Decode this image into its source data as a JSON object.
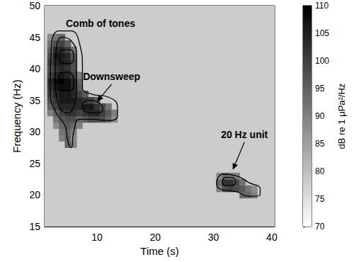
{
  "chart_data": {
    "type": "heatmap",
    "x_label": "Time (s)",
    "y_label": "Frequency (Hz)",
    "xlim": [
      1,
      40.5
    ],
    "xticks": [
      10,
      20,
      30,
      40
    ],
    "ylim": [
      15,
      50
    ],
    "yticks": [
      15,
      20,
      25,
      30,
      35,
      40,
      45,
      50
    ],
    "grid": false,
    "background_level": 78,
    "cells": [
      [
        2,
        33,
        90
      ],
      [
        2,
        34,
        95
      ],
      [
        2,
        35,
        98
      ],
      [
        2,
        36,
        100
      ],
      [
        2,
        37,
        102
      ],
      [
        2,
        38,
        104
      ],
      [
        2,
        39,
        100
      ],
      [
        2,
        40,
        98
      ],
      [
        2,
        41,
        100
      ],
      [
        2,
        42,
        98
      ],
      [
        2,
        43,
        95
      ],
      [
        2,
        44,
        92
      ],
      [
        2,
        45,
        88
      ],
      [
        3,
        31,
        88
      ],
      [
        3,
        32,
        92
      ],
      [
        3,
        33,
        95
      ],
      [
        3,
        34,
        100
      ],
      [
        3,
        35,
        102
      ],
      [
        3,
        36,
        104
      ],
      [
        3,
        37,
        106
      ],
      [
        3,
        38,
        108
      ],
      [
        3,
        39,
        104
      ],
      [
        3,
        40,
        102
      ],
      [
        3,
        41,
        104
      ],
      [
        3,
        42,
        106
      ],
      [
        3,
        43,
        104
      ],
      [
        3,
        44,
        98
      ],
      [
        3,
        45,
        92
      ],
      [
        4,
        29,
        90
      ],
      [
        4,
        30,
        92
      ],
      [
        4,
        31,
        94
      ],
      [
        4,
        32,
        96
      ],
      [
        4,
        33,
        100
      ],
      [
        4,
        34,
        104
      ],
      [
        4,
        35,
        106
      ],
      [
        4,
        36,
        106
      ],
      [
        4,
        37,
        108
      ],
      [
        4,
        38,
        110
      ],
      [
        4,
        39,
        106
      ],
      [
        4,
        40,
        104
      ],
      [
        4,
        41,
        106
      ],
      [
        4,
        42,
        106
      ],
      [
        4,
        43,
        104
      ],
      [
        4,
        44,
        100
      ],
      [
        4,
        45,
        94
      ],
      [
        5,
        28,
        95
      ],
      [
        5,
        29,
        95
      ],
      [
        5,
        30,
        94
      ],
      [
        5,
        31,
        96
      ],
      [
        5,
        32,
        98
      ],
      [
        5,
        33,
        102
      ],
      [
        5,
        34,
        104
      ],
      [
        5,
        35,
        106
      ],
      [
        5,
        36,
        106
      ],
      [
        5,
        37,
        108
      ],
      [
        5,
        38,
        108
      ],
      [
        5,
        39,
        104
      ],
      [
        5,
        40,
        102
      ],
      [
        5,
        41,
        104
      ],
      [
        5,
        42,
        104
      ],
      [
        5,
        43,
        100
      ],
      [
        5,
        44,
        95
      ],
      [
        6,
        28,
        90
      ],
      [
        6,
        29,
        88
      ],
      [
        6,
        30,
        90
      ],
      [
        6,
        31,
        94
      ],
      [
        6,
        32,
        98
      ],
      [
        6,
        33,
        102
      ],
      [
        6,
        34,
        104
      ],
      [
        6,
        35,
        106
      ],
      [
        6,
        36,
        104
      ],
      [
        6,
        37,
        104
      ],
      [
        6,
        38,
        104
      ],
      [
        6,
        39,
        100
      ],
      [
        6,
        40,
        98
      ],
      [
        6,
        41,
        98
      ],
      [
        6,
        42,
        96
      ],
      [
        6,
        43,
        92
      ],
      [
        7,
        31,
        90
      ],
      [
        7,
        32,
        94
      ],
      [
        7,
        33,
        100
      ],
      [
        7,
        34,
        104
      ],
      [
        7,
        35,
        104
      ],
      [
        7,
        36,
        100
      ],
      [
        7,
        37,
        96
      ],
      [
        7,
        38,
        94
      ],
      [
        7,
        39,
        90
      ],
      [
        8,
        32,
        96
      ],
      [
        8,
        33,
        102
      ],
      [
        8,
        34,
        106
      ],
      [
        8,
        35,
        102
      ],
      [
        8,
        36,
        96
      ],
      [
        9,
        32,
        98
      ],
      [
        9,
        33,
        104
      ],
      [
        9,
        34,
        106
      ],
      [
        9,
        35,
        100
      ],
      [
        10,
        32,
        98
      ],
      [
        10,
        33,
        104
      ],
      [
        10,
        34,
        102
      ],
      [
        10,
        35,
        96
      ],
      [
        11,
        32,
        98
      ],
      [
        11,
        33,
        100
      ],
      [
        11,
        34,
        98
      ],
      [
        12,
        32,
        94
      ],
      [
        12,
        33,
        96
      ],
      [
        12,
        34,
        92
      ],
      [
        13,
        32,
        88
      ],
      [
        13,
        33,
        90
      ],
      [
        31,
        21,
        90
      ],
      [
        31,
        22,
        94
      ],
      [
        31,
        23,
        88
      ],
      [
        32,
        21,
        98
      ],
      [
        32,
        22,
        102
      ],
      [
        32,
        23,
        94
      ],
      [
        33,
        21,
        100
      ],
      [
        33,
        22,
        102
      ],
      [
        33,
        23,
        92
      ],
      [
        34,
        21,
        98
      ],
      [
        34,
        22,
        98
      ],
      [
        34,
        23,
        90
      ],
      [
        35,
        20,
        94
      ],
      [
        35,
        21,
        96
      ],
      [
        35,
        22,
        92
      ],
      [
        36,
        20,
        94
      ],
      [
        36,
        21,
        92
      ],
      [
        37,
        20,
        90
      ],
      [
        37,
        21,
        88
      ]
    ],
    "contours": [
      [
        [
          2,
          39
        ],
        [
          2.2,
          44
        ],
        [
          3.5,
          46
        ],
        [
          5.5,
          46
        ],
        [
          7,
          44
        ],
        [
          7.5,
          40
        ],
        [
          7.5,
          37
        ],
        [
          9,
          36
        ],
        [
          12,
          35.5
        ],
        [
          13.5,
          34
        ],
        [
          13.5,
          32.5
        ],
        [
          12,
          31.8
        ],
        [
          9,
          32
        ],
        [
          7,
          32
        ],
        [
          6,
          30
        ],
        [
          5.6,
          27.5
        ],
        [
          5,
          28.5
        ],
        [
          4.5,
          31
        ],
        [
          3,
          33
        ],
        [
          2,
          36
        ],
        [
          2,
          39
        ]
      ],
      [
        [
          2.8,
          38
        ],
        [
          3,
          43
        ],
        [
          4,
          45
        ],
        [
          5.5,
          44.5
        ],
        [
          6.5,
          42
        ],
        [
          6.5,
          37
        ],
        [
          6,
          34
        ],
        [
          5,
          33
        ],
        [
          3.5,
          34
        ],
        [
          2.8,
          38
        ]
      ],
      [
        [
          3.3,
          37
        ],
        [
          3.5,
          39
        ],
        [
          5,
          39.5
        ],
        [
          6,
          38
        ],
        [
          5.5,
          36.5
        ],
        [
          4,
          36.5
        ],
        [
          3.3,
          37
        ]
      ],
      [
        [
          3.5,
          41
        ],
        [
          4,
          43
        ],
        [
          5.5,
          43
        ],
        [
          6,
          41.5
        ],
        [
          5,
          40.8
        ],
        [
          3.5,
          41
        ]
      ],
      [
        [
          7.5,
          34.5
        ],
        [
          8.5,
          35
        ],
        [
          10.5,
          34.5
        ],
        [
          11,
          33.5
        ],
        [
          10,
          33
        ],
        [
          8,
          33.2
        ],
        [
          7.5,
          34.5
        ]
      ],
      [
        [
          30.5,
          22
        ],
        [
          31.5,
          23.3
        ],
        [
          34,
          23
        ],
        [
          36,
          22
        ],
        [
          38,
          21
        ],
        [
          38,
          20
        ],
        [
          36,
          19.8
        ],
        [
          34,
          20.5
        ],
        [
          31,
          21
        ],
        [
          30.5,
          22
        ]
      ],
      [
        [
          31.5,
          22
        ],
        [
          32,
          22.8
        ],
        [
          33.5,
          22.7
        ],
        [
          33.8,
          22
        ],
        [
          33,
          21.5
        ],
        [
          32,
          21.5
        ],
        [
          31.5,
          22
        ]
      ]
    ],
    "annotations": [
      {
        "text": "Comb of tones",
        "x": 10.6,
        "y": 47.2
      },
      {
        "text": "Downsweep",
        "x": 12.5,
        "y": 38.8,
        "arrow_to": [
          10,
          34.8
        ]
      },
      {
        "text": "20 Hz unit",
        "x": 35.3,
        "y": 29.6,
        "arrow_to": [
          33.3,
          24
        ]
      }
    ],
    "colorbar": {
      "label": "dB re 1 μPa²/Hz",
      "lim": [
        70,
        110
      ],
      "ticks": [
        70,
        75,
        80,
        85,
        90,
        95,
        100,
        105,
        110
      ]
    }
  }
}
